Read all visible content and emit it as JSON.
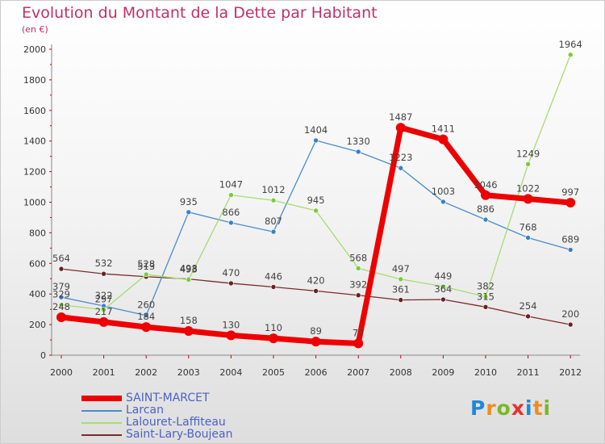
{
  "title": "Evolution du Montant de la Dette par Habitant",
  "subtitle": "(en €)",
  "logo": [
    "P",
    "r",
    "o",
    "x",
    "i",
    "t",
    "i"
  ],
  "logo_colors": [
    "#1e88d8",
    "#f08c1e",
    "#7ab828",
    "#e83030",
    "#1e88d8",
    "#f08c1e",
    "#7ab828"
  ],
  "chart_data": {
    "type": "line",
    "x": [
      "2000",
      "2001",
      "2002",
      "2003",
      "2004",
      "2005",
      "2006",
      "2007",
      "2008",
      "2009",
      "2010",
      "2011",
      "2012"
    ],
    "ylim": [
      0,
      2000
    ],
    "yticks": [
      0,
      200,
      400,
      600,
      800,
      1000,
      1200,
      1400,
      1600,
      1800,
      2000
    ],
    "grid": false,
    "legend_position": "bottom-left",
    "series": [
      {
        "name": "SAINT-MARCET",
        "color": "#ee0000",
        "thick": true,
        "values": [
          248,
          217,
          184,
          158,
          130,
          110,
          89,
          77,
          1487,
          1411,
          1046,
          1022,
          997
        ],
        "labels": [
          "248",
          "217",
          "184",
          "158",
          "130",
          "110",
          "89",
          "77",
          "1487",
          "1411",
          "1046",
          "1022",
          "997"
        ]
      },
      {
        "name": "Larcan",
        "color": "#4a8ccc",
        "dot": "#3a80c8",
        "values": [
          379,
          322,
          260,
          935,
          866,
          807,
          1404,
          1330,
          1223,
          1003,
          886,
          768,
          689
        ],
        "labels": [
          "379",
          "322",
          "260",
          "935",
          "866",
          "807",
          "1404",
          "1330",
          "1223",
          "1003",
          "886",
          "768",
          "689"
        ]
      },
      {
        "name": "Lalouret-Laffiteau",
        "color": "#a6dc6e",
        "dot": "#78cc3c",
        "values": [
          329,
          297,
          528,
          493,
          1047,
          1012,
          945,
          568,
          497,
          449,
          382,
          1249,
          1964
        ],
        "labels": [
          "329",
          "297",
          "528",
          "493",
          "1047",
          "1012",
          "945",
          "568",
          "497",
          "449",
          "382",
          "1249",
          "1964"
        ]
      },
      {
        "name": "Saint-Lary-Boujean",
        "color": "#7a2c2c",
        "dot": "#6a2020",
        "values": [
          564,
          532,
          513,
          498,
          470,
          446,
          420,
          392,
          361,
          364,
          315,
          254,
          200
        ],
        "labels": [
          "564",
          "532",
          "513",
          "498",
          "470",
          "446",
          "420",
          "392",
          "361",
          "364",
          "315",
          "254",
          "200"
        ]
      }
    ]
  }
}
